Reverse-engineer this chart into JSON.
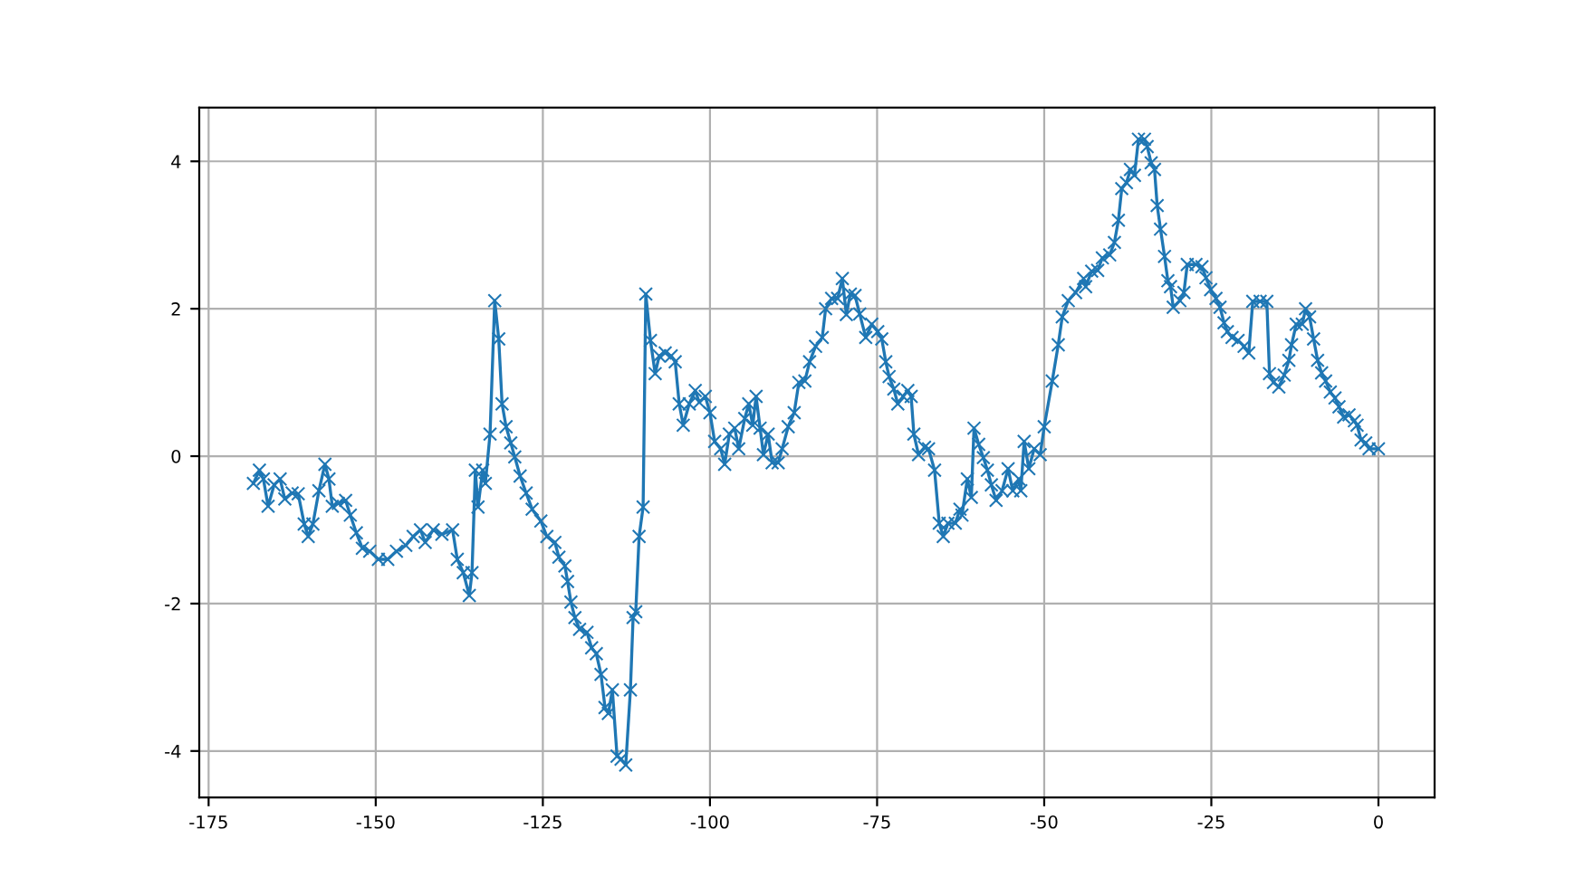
{
  "chart_data": {
    "type": "line",
    "marker": "cross",
    "line_style": "solid",
    "grid": true,
    "xlim": [
      -176.4,
      8.4
    ],
    "xticks": [
      -175,
      -150,
      -125,
      -100,
      -75,
      -50,
      -25,
      0
    ],
    "ylim": [
      -4.63,
      4.73
    ],
    "yticks": [
      -4,
      -2,
      0,
      2,
      4
    ],
    "series": [
      {
        "color": "#1f77b4",
        "x": [
          -168.3,
          -167.4,
          -166.8,
          -166.1,
          -165.2,
          -164.3,
          -163.6,
          -162.5,
          -161.6,
          -160.7,
          -160.1,
          -159.4,
          -158.5,
          -157.6,
          -157.0,
          -156.5,
          -155.6,
          -154.5,
          -153.8,
          -152.9,
          -152.0,
          -150.9,
          -149.6,
          -148.2,
          -146.9,
          -145.5,
          -144.4,
          -143.3,
          -142.6,
          -141.4,
          -140.1,
          -138.5,
          -137.8,
          -136.9,
          -136.0,
          -135.6,
          -135.1,
          -134.7,
          -134.0,
          -133.6,
          -132.9,
          -132.2,
          -131.6,
          -131.1,
          -130.5,
          -129.8,
          -129.2,
          -128.4,
          -127.5,
          -126.6,
          -125.3,
          -124.4,
          -123.2,
          -122.6,
          -121.7,
          -121.3,
          -120.8,
          -120.2,
          -119.5,
          -118.4,
          -117.7,
          -117.0,
          -116.3,
          -115.7,
          -115.2,
          -114.6,
          -113.9,
          -113.3,
          -112.6,
          -111.9,
          -111.5,
          -111.1,
          -110.6,
          -110.0,
          -109.6,
          -108.9,
          -108.2,
          -107.6,
          -106.7,
          -105.8,
          -105.2,
          -104.6,
          -104.0,
          -103.1,
          -102.2,
          -101.6,
          -100.7,
          -100.0,
          -99.3,
          -98.4,
          -97.8,
          -97.1,
          -96.3,
          -95.7,
          -94.8,
          -94.2,
          -93.6,
          -93.1,
          -92.5,
          -92.0,
          -91.3,
          -90.7,
          -89.8,
          -89.2,
          -88.3,
          -87.4,
          -86.7,
          -85.8,
          -85.1,
          -84.2,
          -83.2,
          -82.7,
          -81.8,
          -80.9,
          -80.2,
          -79.6,
          -79.0,
          -78.3,
          -77.6,
          -76.7,
          -75.8,
          -74.9,
          -74.3,
          -73.7,
          -73.2,
          -72.5,
          -71.9,
          -71.1,
          -70.4,
          -69.9,
          -69.5,
          -68.8,
          -67.9,
          -67.3,
          -66.4,
          -65.7,
          -65.1,
          -64.4,
          -63.3,
          -62.6,
          -62.3,
          -61.5,
          -60.9,
          -60.5,
          -59.8,
          -59.1,
          -58.5,
          -57.9,
          -57.2,
          -56.3,
          -55.4,
          -54.7,
          -53.8,
          -53.5,
          -53.0,
          -52.3,
          -51.5,
          -50.6,
          -50.0,
          -48.8,
          -47.9,
          -47.3,
          -46.4,
          -45.3,
          -44.1,
          -43.8,
          -42.9,
          -42.0,
          -41.3,
          -40.2,
          -39.5,
          -38.9,
          -38.4,
          -37.7,
          -37.1,
          -36.5,
          -35.9,
          -35.0,
          -34.6,
          -34.0,
          -33.5,
          -33.1,
          -32.6,
          -32.0,
          -31.5,
          -31.1,
          -30.7,
          -29.7,
          -29.1,
          -28.6,
          -27.3,
          -26.4,
          -25.8,
          -25.1,
          -24.3,
          -23.7,
          -23.1,
          -22.6,
          -21.9,
          -21.0,
          -20.1,
          -19.4,
          -18.8,
          -17.7,
          -16.7,
          -16.3,
          -15.7,
          -14.9,
          -14.1,
          -13.4,
          -13.0,
          -12.3,
          -11.4,
          -10.9,
          -10.3,
          -9.7,
          -9.1,
          -8.5,
          -7.9,
          -7.2,
          -6.5,
          -5.9,
          -5.2,
          -4.4,
          -3.6,
          -3.2,
          -2.6,
          -1.9,
          -1.4,
          0
        ],
        "values": [
          -0.37,
          -0.19,
          -0.31,
          -0.68,
          -0.39,
          -0.31,
          -0.58,
          -0.5,
          -0.51,
          -0.92,
          -1.09,
          -0.92,
          -0.47,
          -0.11,
          -0.31,
          -0.68,
          -0.64,
          -0.6,
          -0.8,
          -1.04,
          -1.25,
          -1.29,
          -1.4,
          -1.4,
          -1.29,
          -1.21,
          -1.09,
          -1.0,
          -1.17,
          -1.0,
          -1.06,
          -1.0,
          -1.4,
          -1.58,
          -1.89,
          -1.58,
          -0.19,
          -0.69,
          -0.19,
          -0.37,
          0.3,
          2.11,
          1.59,
          0.71,
          0.4,
          0.18,
          -0.01,
          -0.27,
          -0.5,
          -0.72,
          -0.88,
          -1.09,
          -1.17,
          -1.37,
          -1.49,
          -1.7,
          -1.98,
          -2.19,
          -2.35,
          -2.39,
          -2.6,
          -2.68,
          -2.96,
          -3.41,
          -3.49,
          -3.17,
          -4.07,
          -4.11,
          -4.19,
          -3.17,
          -2.19,
          -2.11,
          -1.09,
          -0.69,
          2.2,
          1.57,
          1.12,
          1.36,
          1.4,
          1.36,
          1.28,
          0.71,
          0.42,
          0.71,
          0.89,
          0.73,
          0.81,
          0.59,
          0.2,
          0.1,
          -0.11,
          0.3,
          0.38,
          0.1,
          0.51,
          0.71,
          0.42,
          0.81,
          0.38,
          0.02,
          0.3,
          -0.09,
          -0.09,
          0.1,
          0.4,
          0.59,
          1.0,
          1.02,
          1.28,
          1.49,
          1.61,
          2.0,
          2.14,
          2.14,
          2.41,
          1.92,
          2.2,
          2.18,
          1.93,
          1.61,
          1.79,
          1.69,
          1.59,
          1.28,
          1.08,
          0.91,
          0.71,
          0.81,
          0.89,
          0.81,
          0.3,
          0.02,
          0.12,
          0.1,
          -0.19,
          -0.91,
          -1.09,
          -0.91,
          -0.91,
          -0.72,
          -0.8,
          -0.31,
          -0.56,
          0.38,
          0.16,
          -0.02,
          -0.19,
          -0.39,
          -0.6,
          -0.47,
          -0.17,
          -0.47,
          -0.31,
          -0.47,
          0.2,
          -0.17,
          0.1,
          0.02,
          0.4,
          1.02,
          1.51,
          1.89,
          2.11,
          2.22,
          2.41,
          2.3,
          2.51,
          2.52,
          2.69,
          2.73,
          2.9,
          3.2,
          3.63,
          3.71,
          3.89,
          3.81,
          4.3,
          4.3,
          4.2,
          3.98,
          3.89,
          3.4,
          3.08,
          2.71,
          2.38,
          2.3,
          2.02,
          2.11,
          2.22,
          2.6,
          2.6,
          2.57,
          2.42,
          2.26,
          2.14,
          2.02,
          1.81,
          1.69,
          1.61,
          1.57,
          1.49,
          1.4,
          2.1,
          2.1,
          2.1,
          1.12,
          1.0,
          0.94,
          1.1,
          1.3,
          1.51,
          1.79,
          1.79,
          2.0,
          1.89,
          1.59,
          1.3,
          1.13,
          1.02,
          0.87,
          0.79,
          0.67,
          0.53,
          0.56,
          0.48,
          0.42,
          0.22,
          0.18,
          0.1,
          0.1
        ]
      }
    ]
  }
}
